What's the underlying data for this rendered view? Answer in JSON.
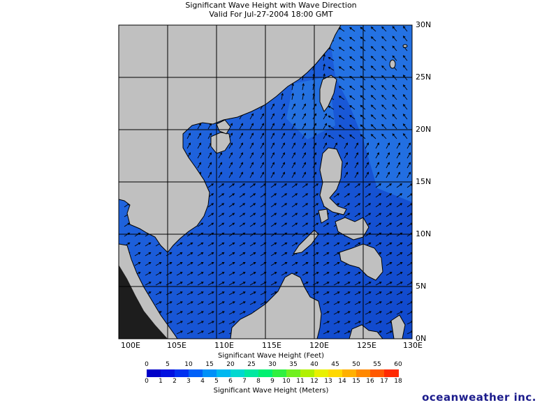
{
  "title": {
    "line1": "Significant Wave Height with Wave Direction",
    "line2": "Valid For Jul-27-2004 18:00 GMT"
  },
  "map": {
    "lon_ticks": [
      "100E",
      "105E",
      "110E",
      "115E",
      "120E",
      "125E",
      "130E"
    ],
    "lat_ticks": [
      "30N",
      "25N",
      "20N",
      "15N",
      "10N",
      "5N",
      "0N"
    ],
    "lon_range": [
      100,
      130
    ],
    "lat_range": [
      0,
      30
    ],
    "colors": {
      "land": "#c0c0c0",
      "water": "#1e5fd8",
      "water_dark": "#123fd0",
      "water_light": "#2e82e8",
      "grid": "#000000",
      "arrow": "#000000",
      "coast": "#000000"
    }
  },
  "scale": {
    "feet_title": "Significant Wave Height (Feet)",
    "feet_ticks": [
      "0",
      "5",
      "10",
      "15",
      "20",
      "25",
      "30",
      "35",
      "40",
      "45",
      "50",
      "55",
      "60"
    ],
    "meter_title": "Significant Wave Height (Meters)",
    "meter_ticks": [
      "0",
      "1",
      "2",
      "3",
      "4",
      "5",
      "6",
      "7",
      "8",
      "9",
      "10",
      "11",
      "12",
      "13",
      "14",
      "15",
      "16",
      "17",
      "18"
    ],
    "colors": [
      "#0000c8",
      "#0010e0",
      "#0030f0",
      "#0060f8",
      "#0090f8",
      "#00b8f0",
      "#00d8d0",
      "#00e8a0",
      "#00f070",
      "#30f040",
      "#70f020",
      "#b0f000",
      "#e8f000",
      "#ffd800",
      "#ffb000",
      "#ff8800",
      "#ff5800",
      "#ff2800"
    ]
  },
  "brand": "oceanweather inc."
}
